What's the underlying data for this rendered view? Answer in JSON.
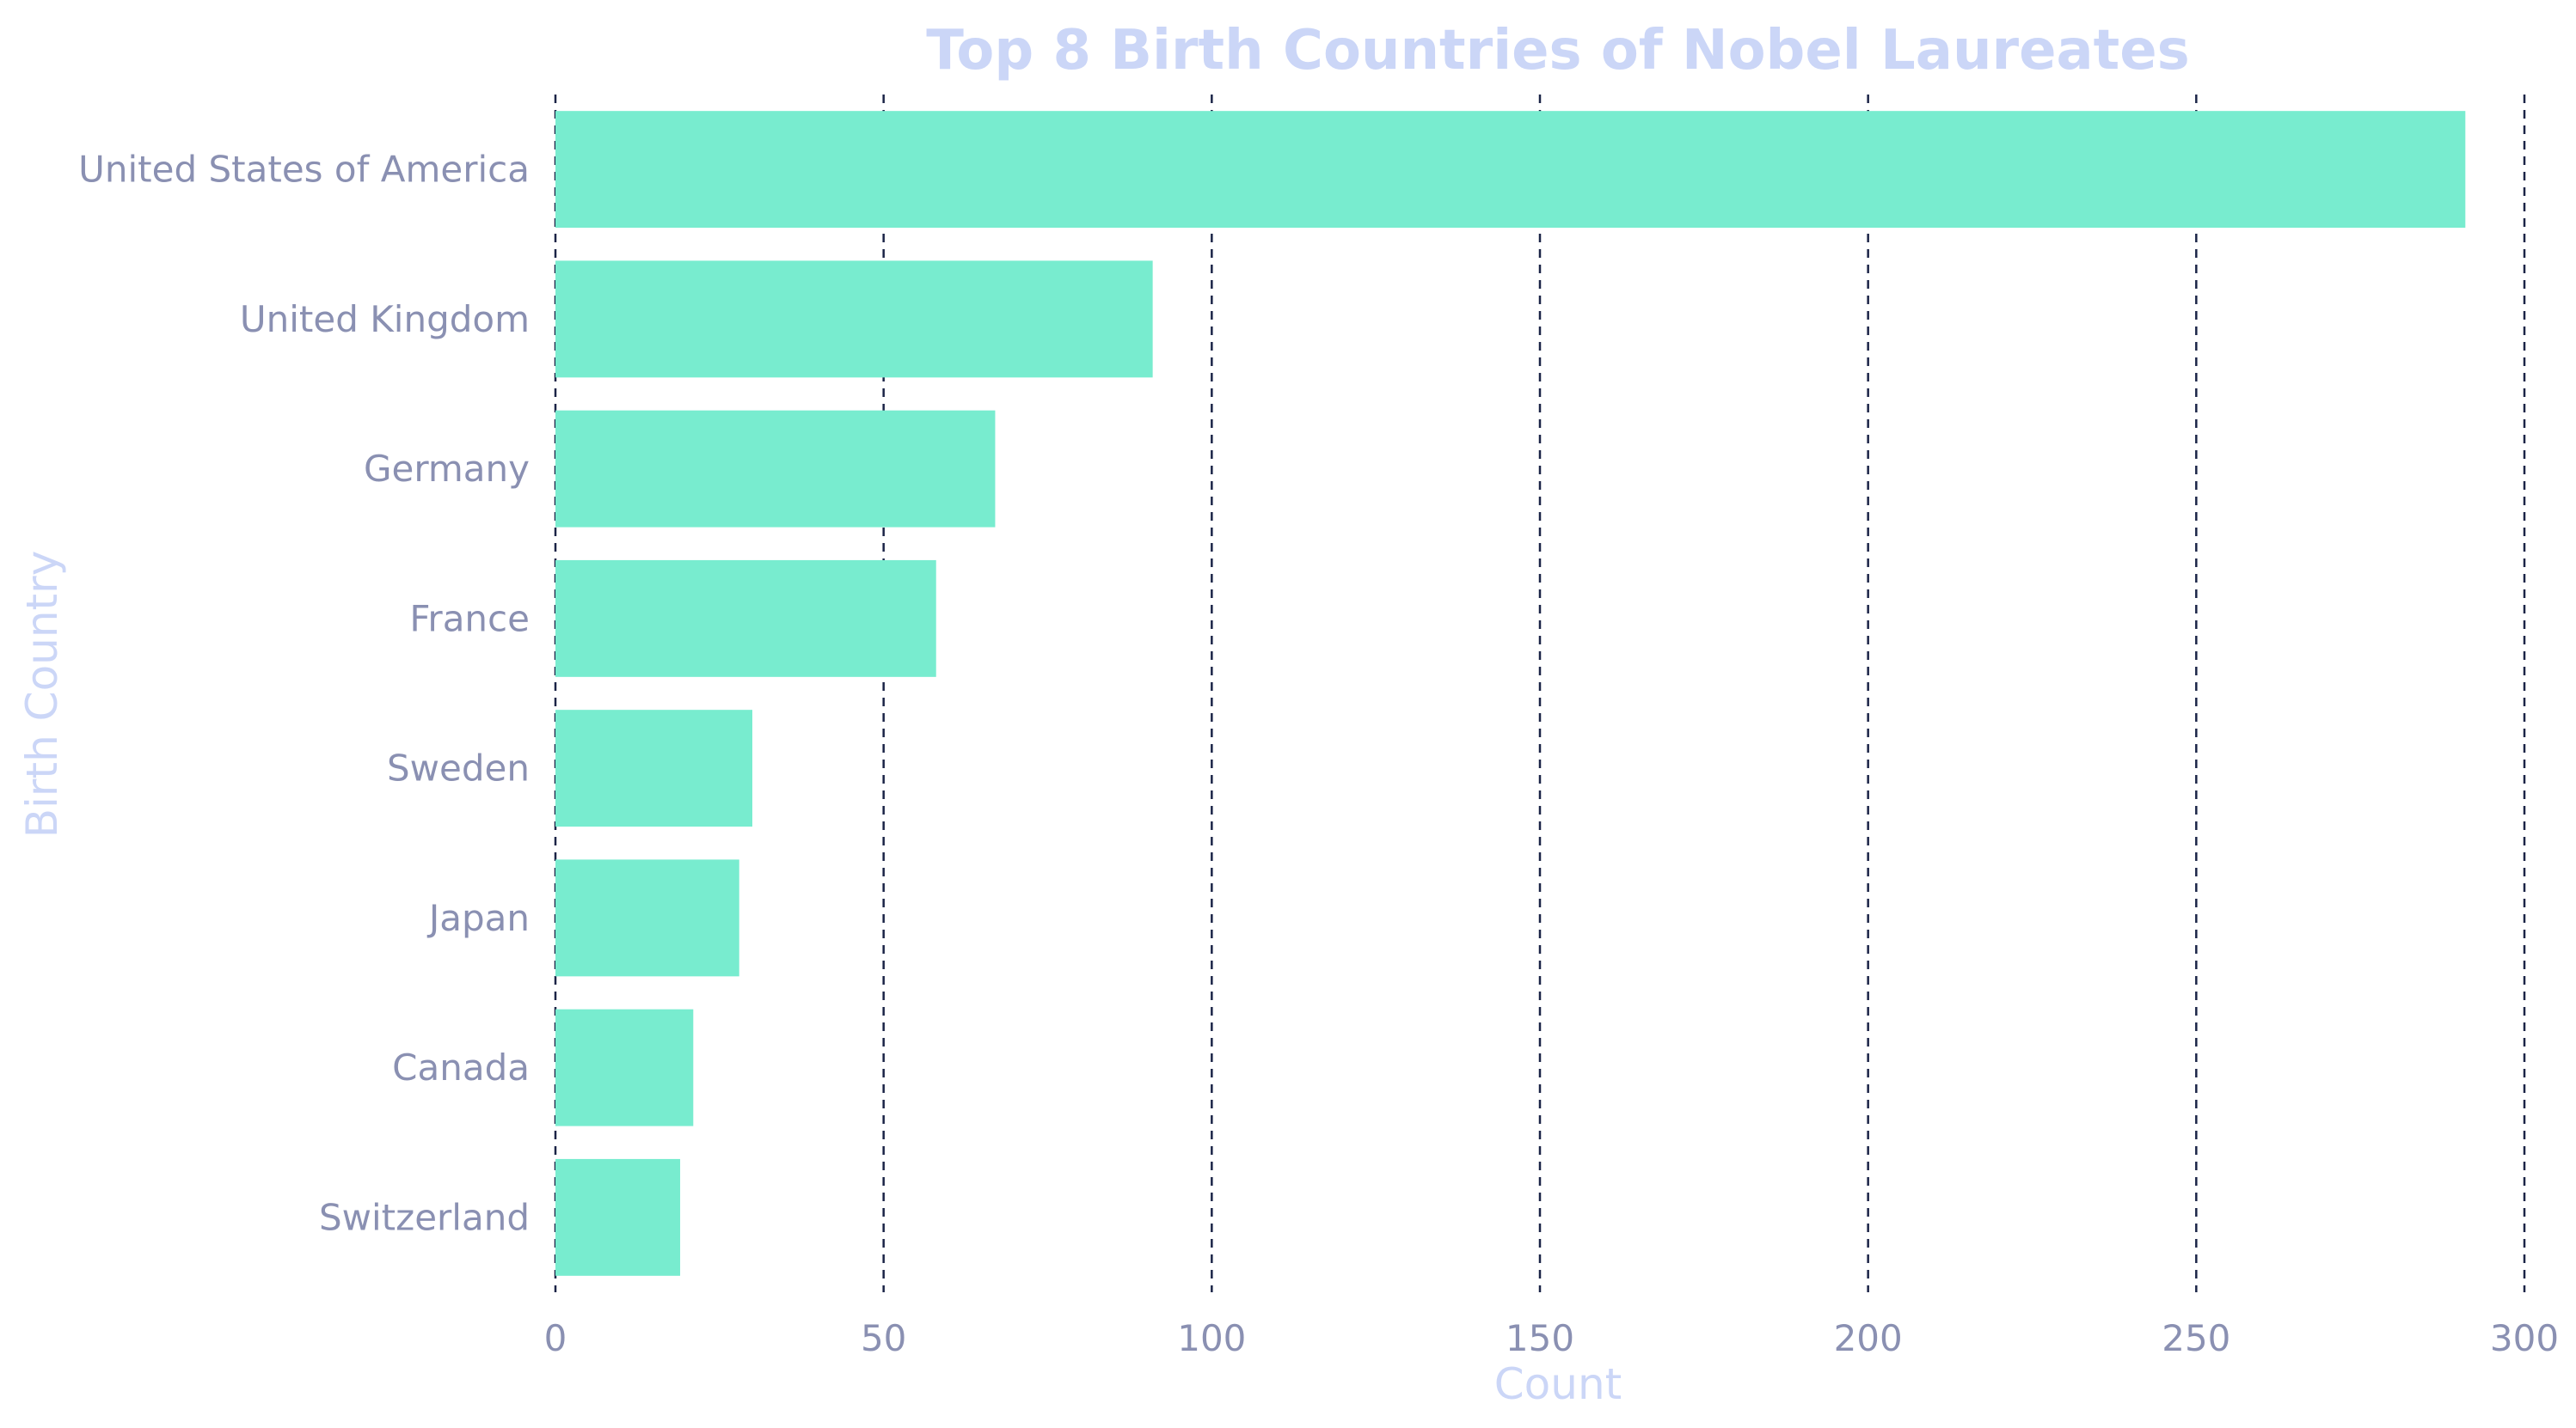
{
  "chart_data": {
    "type": "bar",
    "orientation": "horizontal",
    "title": "Top 8 Birth Countries of Nobel Laureates",
    "xlabel": "Count",
    "ylabel": "Birth Country",
    "categories": [
      "United States of America",
      "United Kingdom",
      "Germany",
      "France",
      "Sweden",
      "Japan",
      "Canada",
      "Switzerland"
    ],
    "values": [
      291,
      91,
      67,
      58,
      30,
      28,
      21,
      19
    ],
    "xlim": [
      0,
      300
    ],
    "xticks": [
      0,
      50,
      100,
      150,
      200,
      250,
      300
    ],
    "xtick_labels": [
      "0",
      "50",
      "100",
      "150",
      "200",
      "250",
      "300"
    ],
    "grid": "vertical, dashed",
    "colors": {
      "bar": "#78ECCF",
      "title": "#CBD6F7",
      "axis_title": "#CBD6F7",
      "tick_label": "#8A90B2",
      "grid": "#1B2447",
      "background": "#FFFFFF"
    }
  }
}
